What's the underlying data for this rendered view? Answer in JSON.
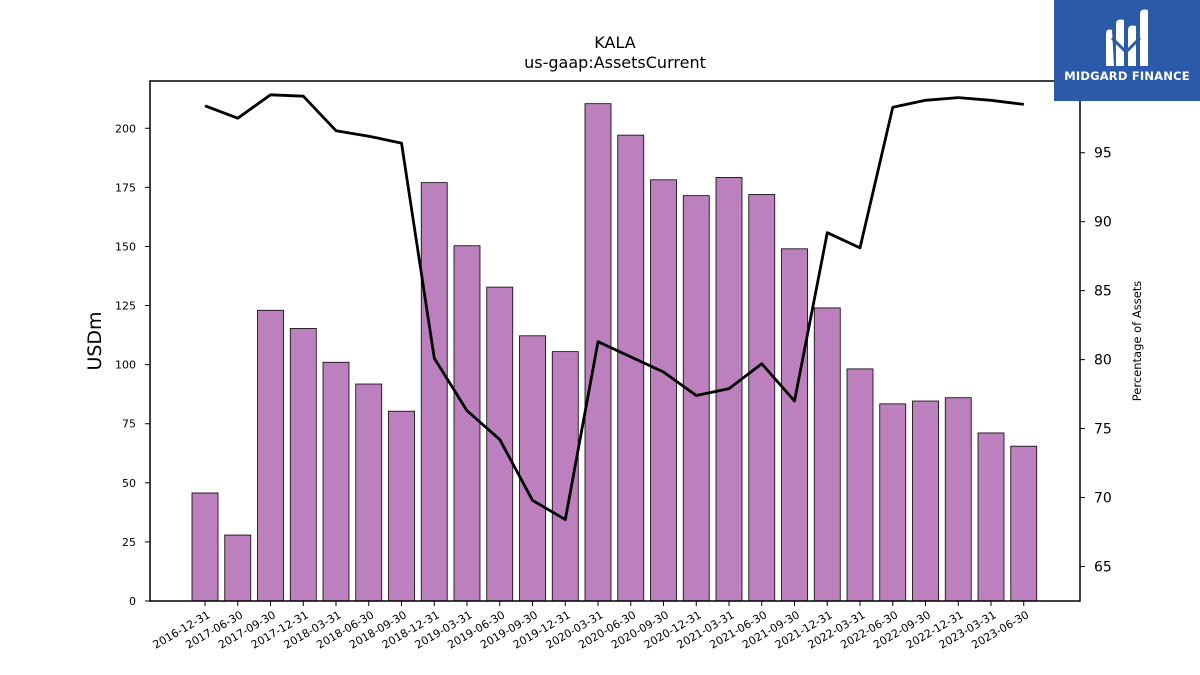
{
  "brand": {
    "name": "MIDGARD FINANCE",
    "color": "#2a5aa8"
  },
  "chart_data": {
    "type": "bar",
    "title": "KALA",
    "subtitle": "us-gaap:AssetsCurrent",
    "ylabel": "USDm",
    "y2label": "Percentage of Assets",
    "ylim": [
      0,
      220
    ],
    "y2lim": [
      62.5,
      100.2
    ],
    "yticks": [
      0,
      25,
      50,
      75,
      100,
      125,
      150,
      175,
      200
    ],
    "y2ticks": [
      65,
      70,
      75,
      80,
      85,
      90,
      95
    ],
    "bar_color": "#bb80bd",
    "line_color": "#000000",
    "categories": [
      "2016-12-31",
      "2017-06-30",
      "2017-09-30",
      "2017-12-31",
      "2018-03-31",
      "2018-06-30",
      "2018-09-30",
      "2018-12-31",
      "2019-03-31",
      "2019-06-30",
      "2019-09-30",
      "2019-12-31",
      "2020-03-31",
      "2020-06-30",
      "2020-09-30",
      "2020-12-31",
      "2021-03-31",
      "2021-06-30",
      "2021-09-30",
      "2021-12-31",
      "2022-03-31",
      "2022-06-30",
      "2022-09-30",
      "2022-12-31",
      "2023-03-31",
      "2023-06-30"
    ],
    "series": [
      {
        "values": [
          45.7,
          27.9,
          123.0,
          115.3,
          101.0,
          91.8,
          80.3,
          177.0,
          150.3,
          132.8,
          112.2,
          105.5,
          210.4,
          197.1,
          178.2,
          171.5,
          179.2,
          172.0,
          149.0,
          124.0,
          98.2,
          83.4,
          84.6,
          86.0,
          71.1,
          65.5
        ]
      },
      {
        "axis": "right",
        "values": [
          98.4,
          97.5,
          99.2,
          99.1,
          96.6,
          96.2,
          95.7,
          80.1,
          76.3,
          74.2,
          69.8,
          68.4,
          81.3,
          80.2,
          79.1,
          77.4,
          77.9,
          79.7,
          77.0,
          89.2,
          88.1,
          98.3,
          98.8,
          99.0,
          98.8,
          98.5
        ]
      }
    ]
  }
}
